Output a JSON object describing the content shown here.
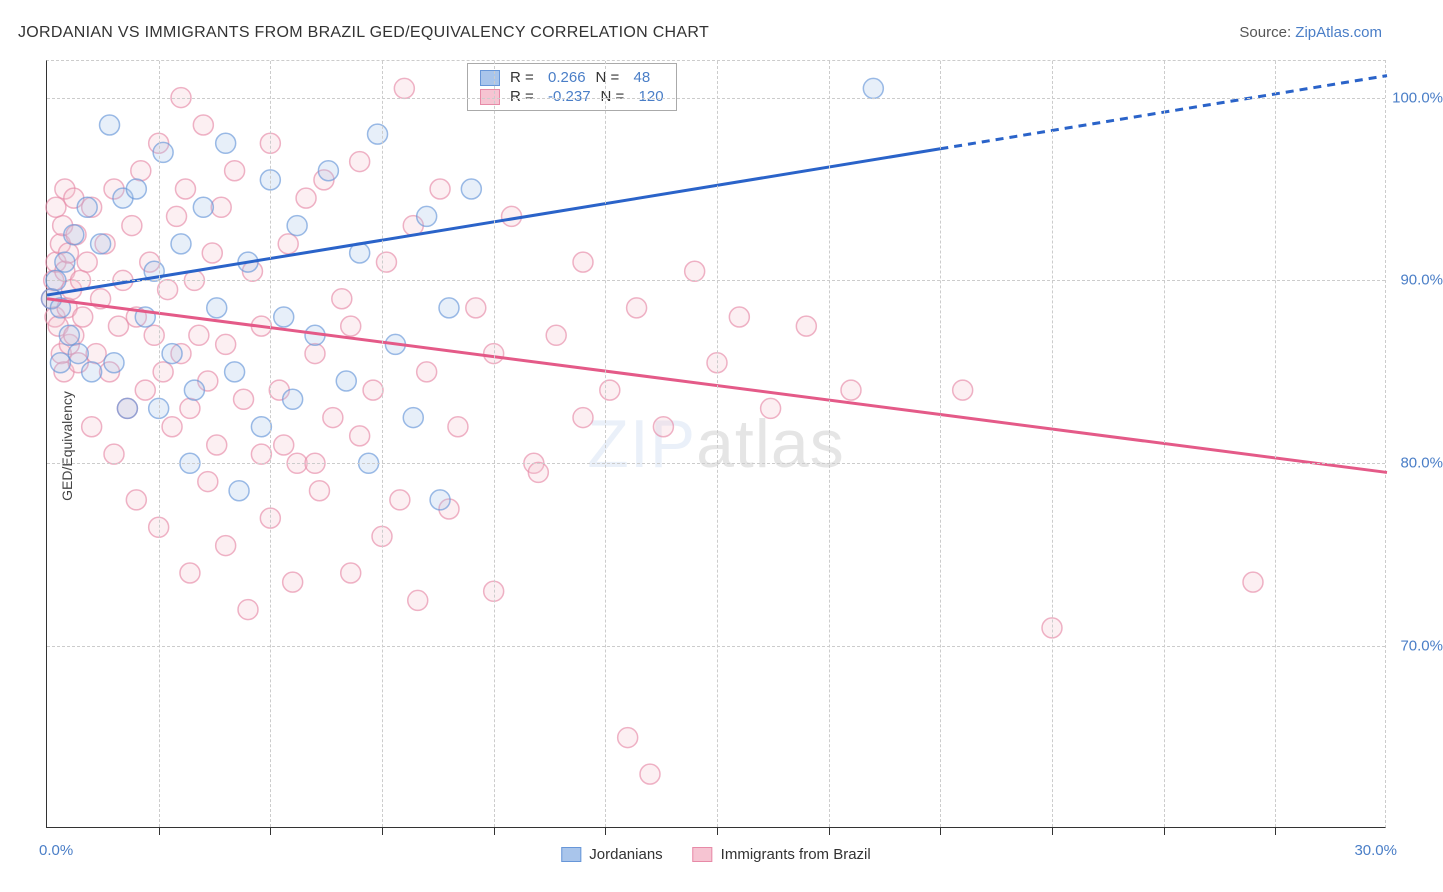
{
  "title": "JORDANIAN VS IMMIGRANTS FROM BRAZIL GED/EQUIVALENCY CORRELATION CHART",
  "source_label": "Source:",
  "source_value": "ZipAtlas.com",
  "y_axis_label": "GED/Equivalency",
  "watermark_a": "ZIP",
  "watermark_b": "atlas",
  "chart": {
    "type": "scatter",
    "xlim": [
      0,
      30
    ],
    "ylim": [
      60,
      102
    ],
    "xticks_visible": [
      0,
      30
    ],
    "xtick_labels": [
      "0.0%",
      "30.0%"
    ],
    "xtick_minor": [
      2.5,
      5,
      7.5,
      10,
      12.5,
      15,
      17.5,
      20,
      22.5,
      25,
      27.5
    ],
    "yticks": [
      70,
      80,
      90,
      100
    ],
    "ytick_labels": [
      "70.0%",
      "80.0%",
      "90.0%",
      "100.0%"
    ],
    "grid_color": "#cccccc",
    "axis_color": "#333333",
    "background_color": "#ffffff",
    "point_radius": 10,
    "trend_line_width": 3,
    "trend_dash_threshold_x": 20,
    "series": [
      {
        "name": "Jordanians",
        "fill": "#a9c5eb",
        "stroke": "#6796d8",
        "R": "0.266",
        "N": "48",
        "trend_color": "#2a63c9",
        "trend_start": [
          0,
          89.2
        ],
        "trend_end": [
          30,
          101.2
        ],
        "points": [
          [
            0.1,
            89
          ],
          [
            0.2,
            90
          ],
          [
            0.3,
            88.5
          ],
          [
            0.4,
            91
          ],
          [
            0.5,
            87
          ],
          [
            0.6,
            92.5
          ],
          [
            0.7,
            86
          ],
          [
            0.9,
            94
          ],
          [
            1.0,
            85
          ],
          [
            1.2,
            92
          ],
          [
            1.4,
            98.5
          ],
          [
            1.5,
            85.5
          ],
          [
            1.7,
            94.5
          ],
          [
            1.8,
            83
          ],
          [
            2.0,
            95
          ],
          [
            2.2,
            88
          ],
          [
            2.4,
            90.5
          ],
          [
            2.6,
            97
          ],
          [
            2.8,
            86
          ],
          [
            3.0,
            92
          ],
          [
            3.3,
            84
          ],
          [
            3.5,
            94
          ],
          [
            3.8,
            88.5
          ],
          [
            4.0,
            97.5
          ],
          [
            4.2,
            85
          ],
          [
            4.5,
            91
          ],
          [
            4.8,
            82
          ],
          [
            5.0,
            95.5
          ],
          [
            5.3,
            88
          ],
          [
            5.6,
            93
          ],
          [
            6.0,
            87
          ],
          [
            6.3,
            96
          ],
          [
            6.7,
            84.5
          ],
          [
            7.0,
            91.5
          ],
          [
            7.4,
            98
          ],
          [
            7.8,
            86.5
          ],
          [
            8.2,
            82.5
          ],
          [
            8.5,
            93.5
          ],
          [
            9.0,
            88.5
          ],
          [
            9.5,
            95
          ],
          [
            4.3,
            78.5
          ],
          [
            5.5,
            83.5
          ],
          [
            7.2,
            80
          ],
          [
            8.8,
            78
          ],
          [
            3.2,
            80
          ],
          [
            2.5,
            83
          ],
          [
            18.5,
            100.5
          ],
          [
            0.3,
            85.5
          ]
        ]
      },
      {
        "name": "Immigrants from Brazil",
        "fill": "#f6c4d2",
        "stroke": "#e78aa7",
        "R": "-0.237",
        "N": "120",
        "trend_color": "#e45a88",
        "trend_start": [
          0,
          89.0
        ],
        "trend_end": [
          30,
          79.5
        ],
        "points": [
          [
            0.1,
            89
          ],
          [
            0.15,
            90
          ],
          [
            0.18,
            88
          ],
          [
            0.2,
            91
          ],
          [
            0.25,
            87.5
          ],
          [
            0.3,
            92
          ],
          [
            0.32,
            86
          ],
          [
            0.35,
            93
          ],
          [
            0.38,
            85
          ],
          [
            0.4,
            90.5
          ],
          [
            0.45,
            88.5
          ],
          [
            0.48,
            91.5
          ],
          [
            0.5,
            86.5
          ],
          [
            0.55,
            89.5
          ],
          [
            0.6,
            87
          ],
          [
            0.65,
            92.5
          ],
          [
            0.7,
            85.5
          ],
          [
            0.75,
            90
          ],
          [
            0.8,
            88
          ],
          [
            0.9,
            91
          ],
          [
            1.0,
            94
          ],
          [
            1.1,
            86
          ],
          [
            1.2,
            89
          ],
          [
            1.3,
            92
          ],
          [
            1.4,
            85
          ],
          [
            1.5,
            95
          ],
          [
            1.6,
            87.5
          ],
          [
            1.7,
            90
          ],
          [
            1.8,
            83
          ],
          [
            1.9,
            93
          ],
          [
            2.0,
            88
          ],
          [
            2.1,
            96
          ],
          [
            2.2,
            84
          ],
          [
            2.3,
            91
          ],
          [
            2.4,
            87
          ],
          [
            2.5,
            97.5
          ],
          [
            2.6,
            85
          ],
          [
            2.7,
            89.5
          ],
          [
            2.8,
            82
          ],
          [
            2.9,
            93.5
          ],
          [
            3.0,
            86
          ],
          [
            3.1,
            95
          ],
          [
            3.2,
            83
          ],
          [
            3.3,
            90
          ],
          [
            3.4,
            87
          ],
          [
            3.5,
            98.5
          ],
          [
            3.6,
            84.5
          ],
          [
            3.7,
            91.5
          ],
          [
            3.8,
            81
          ],
          [
            3.9,
            94
          ],
          [
            4.0,
            86.5
          ],
          [
            4.2,
            96
          ],
          [
            4.4,
            83.5
          ],
          [
            4.6,
            90.5
          ],
          [
            4.8,
            87.5
          ],
          [
            5.0,
            97.5
          ],
          [
            5.2,
            84
          ],
          [
            5.4,
            92
          ],
          [
            5.6,
            80
          ],
          [
            5.8,
            94.5
          ],
          [
            6.0,
            86
          ],
          [
            6.2,
            95.5
          ],
          [
            6.4,
            82.5
          ],
          [
            6.6,
            89
          ],
          [
            6.8,
            87.5
          ],
          [
            7.0,
            96.5
          ],
          [
            7.3,
            84
          ],
          [
            7.6,
            91
          ],
          [
            7.9,
            78
          ],
          [
            8.2,
            93
          ],
          [
            8.5,
            85
          ],
          [
            8.8,
            95
          ],
          [
            9.2,
            82
          ],
          [
            9.6,
            88.5
          ],
          [
            10.0,
            86
          ],
          [
            10.4,
            93.5
          ],
          [
            10.9,
            80
          ],
          [
            11.4,
            87
          ],
          [
            12.0,
            91
          ],
          [
            12.6,
            84
          ],
          [
            13.2,
            88.5
          ],
          [
            13.8,
            82
          ],
          [
            14.5,
            90.5
          ],
          [
            15.0,
            85.5
          ],
          [
            15.5,
            88
          ],
          [
            16.2,
            83
          ],
          [
            17.0,
            87.5
          ],
          [
            18.0,
            84
          ],
          [
            2.0,
            78
          ],
          [
            2.5,
            76.5
          ],
          [
            3.2,
            74
          ],
          [
            3.6,
            79
          ],
          [
            4.0,
            75.5
          ],
          [
            4.5,
            72
          ],
          [
            5.0,
            77
          ],
          [
            5.5,
            73.5
          ],
          [
            6.1,
            78.5
          ],
          [
            6.8,
            74
          ],
          [
            7.5,
            76
          ],
          [
            8.3,
            72.5
          ],
          [
            9.0,
            77.5
          ],
          [
            10.0,
            73
          ],
          [
            11.0,
            79.5
          ],
          [
            12.0,
            82.5
          ],
          [
            13.0,
            65
          ],
          [
            13.5,
            63
          ],
          [
            20.5,
            84
          ],
          [
            22.5,
            71
          ],
          [
            27.0,
            73.5
          ],
          [
            4.8,
            80.5
          ],
          [
            5.3,
            81
          ],
          [
            6.0,
            80
          ],
          [
            7.0,
            81.5
          ],
          [
            1.0,
            82
          ],
          [
            1.5,
            80.5
          ],
          [
            0.2,
            94
          ],
          [
            0.4,
            95
          ],
          [
            0.6,
            94.5
          ],
          [
            3.0,
            100
          ],
          [
            8.0,
            100.5
          ]
        ]
      }
    ]
  },
  "bottom_legend": [
    "Jordanians",
    "Immigrants from Brazil"
  ],
  "stat_legend_labels": {
    "r": "R =",
    "n": "N ="
  }
}
